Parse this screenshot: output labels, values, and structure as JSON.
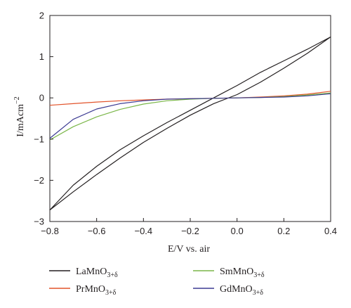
{
  "chart_data": {
    "type": "line",
    "title": "",
    "xlabel": "E/V vs. air",
    "ylabel": "I/mAcm",
    "ylabel_sup": "−2",
    "xlim": [
      -0.8,
      0.4
    ],
    "ylim": [
      -3,
      2
    ],
    "x_ticks": [
      -0.8,
      -0.6,
      -0.4,
      -0.2,
      0.0,
      0.2,
      0.4
    ],
    "x_tick_labels": [
      "−0.8",
      "−0.6",
      "−0.4",
      "−0.2",
      "0.0",
      "0.2",
      "0.4"
    ],
    "y_ticks": [
      -3,
      -2,
      -1,
      0,
      1,
      2
    ],
    "y_tick_labels": [
      "−3",
      "−2",
      "−1",
      "0",
      "1",
      "2"
    ],
    "grid": false,
    "legend_position": "bottom",
    "series": [
      {
        "name": "LaMnO",
        "name_sub": "3+δ",
        "color": "#231f20",
        "x": [
          -0.8,
          -0.7,
          -0.6,
          -0.5,
          -0.4,
          -0.3,
          -0.2,
          -0.1,
          0.0,
          0.1,
          0.2,
          0.3,
          0.4,
          0.3,
          0.2,
          0.1,
          0.0,
          -0.1,
          -0.2,
          -0.3,
          -0.4,
          -0.5,
          -0.6,
          -0.7,
          -0.8
        ],
        "y": [
          -2.72,
          -2.28,
          -1.86,
          -1.46,
          -1.08,
          -0.74,
          -0.42,
          -0.14,
          0.08,
          0.38,
          0.72,
          1.08,
          1.48,
          1.18,
          0.9,
          0.62,
          0.3,
          0.0,
          -0.3,
          -0.6,
          -0.92,
          -1.26,
          -1.66,
          -2.12,
          -2.72
        ]
      },
      {
        "name": "PrMnO",
        "name_sub": "3+δ",
        "color": "#e2532a",
        "x": [
          -0.8,
          -0.7,
          -0.6,
          -0.5,
          -0.4,
          -0.3,
          -0.2,
          -0.1,
          0.0,
          0.1,
          0.2,
          0.3,
          0.4
        ],
        "y": [
          -0.18,
          -0.14,
          -0.1,
          -0.07,
          -0.05,
          -0.03,
          -0.02,
          -0.01,
          0.0,
          0.02,
          0.05,
          0.09,
          0.16
        ]
      },
      {
        "name": "SmMnO",
        "name_sub": "3+δ",
        "color": "#7ab648",
        "x": [
          -0.8,
          -0.7,
          -0.6,
          -0.5,
          -0.4,
          -0.3,
          -0.2,
          -0.1,
          0.0,
          0.1,
          0.2,
          0.3,
          0.4
        ],
        "y": [
          -1.02,
          -0.7,
          -0.46,
          -0.28,
          -0.15,
          -0.07,
          -0.03,
          -0.01,
          0.0,
          0.01,
          0.03,
          0.07,
          0.12
        ]
      },
      {
        "name": "GdMnO",
        "name_sub": "3+δ",
        "color": "#3b3a92",
        "x": [
          -0.8,
          -0.7,
          -0.6,
          -0.5,
          -0.4,
          -0.3,
          -0.2,
          -0.1,
          0.0,
          0.1,
          0.2,
          0.3,
          0.4
        ],
        "y": [
          -0.98,
          -0.52,
          -0.27,
          -0.14,
          -0.07,
          -0.03,
          -0.02,
          -0.01,
          0.0,
          0.01,
          0.02,
          0.05,
          0.1
        ]
      }
    ]
  }
}
